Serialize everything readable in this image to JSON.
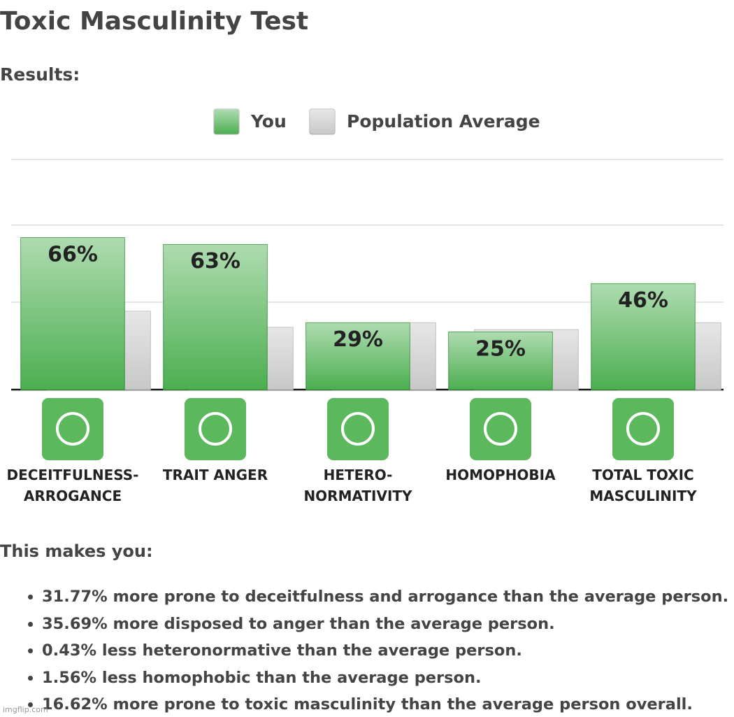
{
  "header": {
    "title": "Toxic Masculinity Test",
    "subtitle": "Results:"
  },
  "chart_data": {
    "type": "bar",
    "categories": [
      "DECEITFULNESS-\nARROGANCE",
      "TRAIT ANGER",
      "HETERO-\nNORMATIVITY",
      "HOMOPHOBIA",
      "TOTAL TOXIC\nMASCULINITY"
    ],
    "series": [
      {
        "name": "You",
        "color": "#4caf50",
        "values": [
          66,
          63,
          29,
          25,
          46
        ],
        "value_labels": [
          "66%",
          "63%",
          "29%",
          "25%",
          "46%"
        ]
      },
      {
        "name": "Population Average",
        "color": "#c8c8c8",
        "values": [
          34,
          27,
          29,
          26,
          29
        ]
      }
    ],
    "ylim": [
      0,
      100
    ],
    "yticks": [
      0,
      38,
      71.5,
      100
    ],
    "grid": true
  },
  "summary": {
    "heading": "This makes you:",
    "items": [
      "31.77% more prone to deceitfulness and arrogance than the average person.",
      "35.69% more disposed to anger than the average person.",
      "0.43% less heteronormative than the average person.",
      "1.56% less homophobic than the average person.",
      "16.62% more prone to toxic masculinity than the average person overall."
    ]
  },
  "watermark": "imgflip.com"
}
